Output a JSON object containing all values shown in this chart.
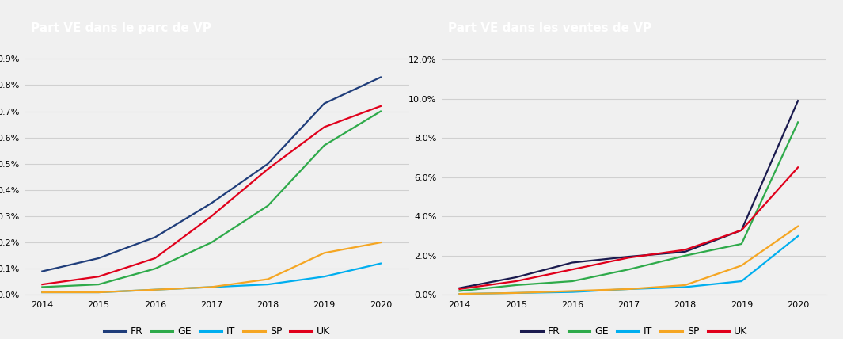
{
  "chart1_title": "Part VE dans le parc de VP",
  "chart2_title": "Part VE dans les ventes de VP",
  "years": [
    2014,
    2015,
    2016,
    2017,
    2018,
    2019,
    2020
  ],
  "colors_left": {
    "FR": "#1f3d7a",
    "GE": "#2eaa4a",
    "IT": "#00aeef",
    "SP": "#f5a623",
    "UK": "#e0001b"
  },
  "colors_right": {
    "FR": "#1a1a4e",
    "GE": "#2eaa4a",
    "IT": "#00aeef",
    "SP": "#f5a623",
    "UK": "#e0001b"
  },
  "parc_data": {
    "FR": [
      0.0009,
      0.0014,
      0.0022,
      0.0035,
      0.005,
      0.0073,
      0.0083
    ],
    "GE": [
      0.0003,
      0.0004,
      0.001,
      0.002,
      0.0034,
      0.0057,
      0.007
    ],
    "IT": [
      0.0001,
      0.0001,
      0.0002,
      0.0003,
      0.0004,
      0.0007,
      0.0012
    ],
    "SP": [
      0.0001,
      0.0001,
      0.0002,
      0.0003,
      0.0006,
      0.0016,
      0.002
    ],
    "UK": [
      0.0004,
      0.0007,
      0.0014,
      0.003,
      0.0048,
      0.0064,
      0.0072
    ]
  },
  "ventes_data": {
    "FR": [
      0.0035,
      0.009,
      0.0165,
      0.0195,
      0.022,
      0.033,
      0.099
    ],
    "GE": [
      0.002,
      0.005,
      0.007,
      0.013,
      0.02,
      0.026,
      0.088
    ],
    "IT": [
      0.0005,
      0.001,
      0.0015,
      0.003,
      0.004,
      0.007,
      0.03
    ],
    "SP": [
      0.0005,
      0.001,
      0.002,
      0.003,
      0.005,
      0.015,
      0.035
    ],
    "UK": [
      0.003,
      0.007,
      0.013,
      0.019,
      0.023,
      0.033,
      0.065
    ]
  },
  "header_bg": "#9c9c9c",
  "header_text": "#ffffff",
  "plot_bg": "#f0f0f0",
  "outer_bg": "#f0f0f0",
  "grid_color": "#d0d0d0",
  "legend_labels": [
    "FR",
    "GE",
    "IT",
    "SP",
    "UK"
  ],
  "parc_ylim": [
    0,
    0.0095
  ],
  "parc_yticks": [
    0.0,
    0.001,
    0.002,
    0.003,
    0.004,
    0.005,
    0.006,
    0.007,
    0.008,
    0.009
  ],
  "ventes_ylim": [
    0,
    0.127
  ],
  "ventes_yticks": [
    0.0,
    0.02,
    0.04,
    0.06,
    0.08,
    0.1,
    0.12
  ]
}
